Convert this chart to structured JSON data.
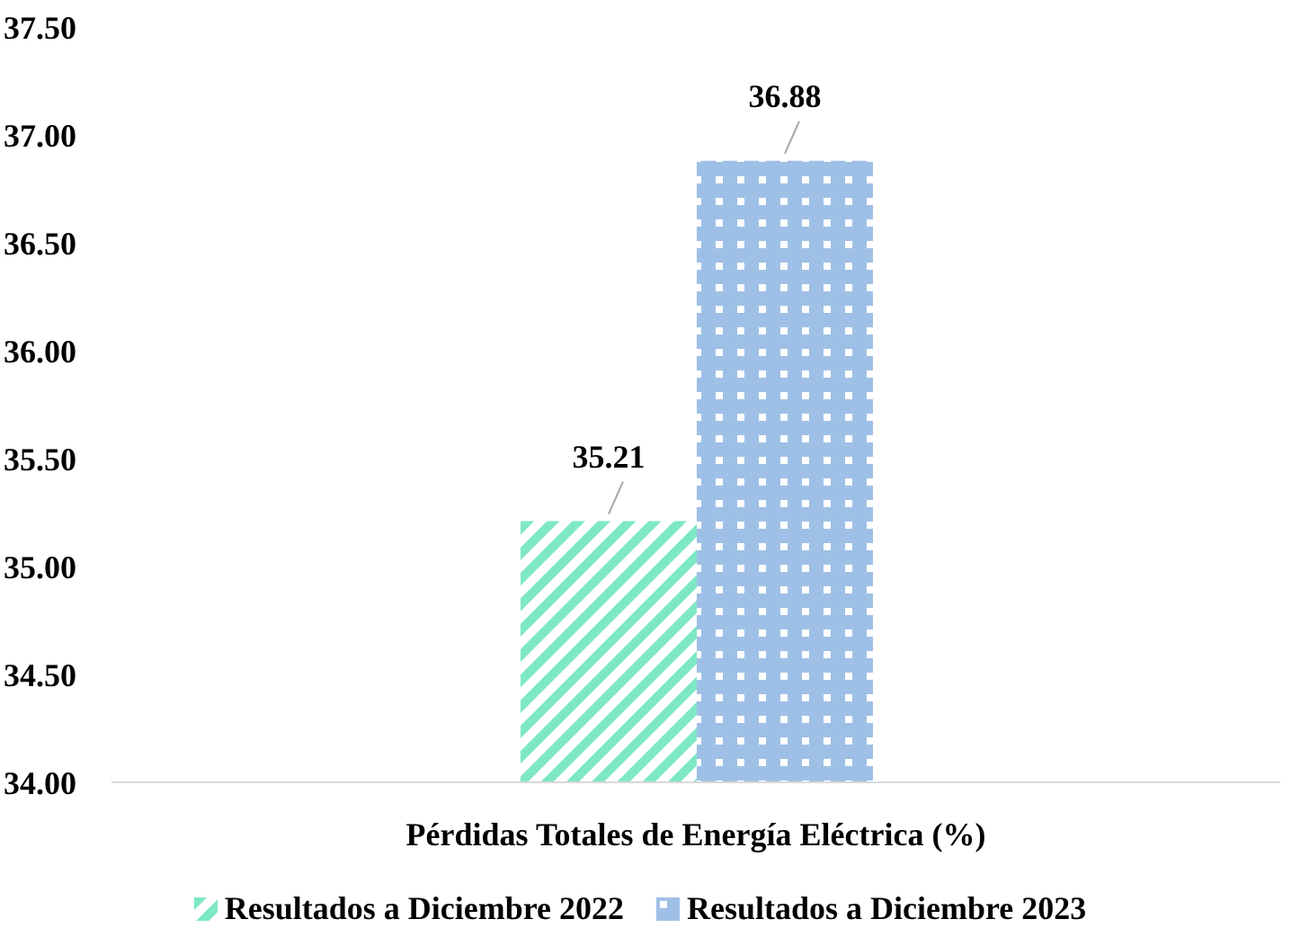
{
  "chart_data": {
    "type": "bar",
    "categories": [
      "Pérdidas Totales de Energía Eléctrica (%)"
    ],
    "series": [
      {
        "name": "Resultados a Diciembre 2022",
        "color": "#7ee8c4",
        "values": [
          35.21
        ]
      },
      {
        "name": "Resultados a Diciembre 2023",
        "color": "#9fc0e6",
        "values": [
          36.88
        ]
      }
    ],
    "ylim": [
      34,
      37.5
    ],
    "yticks": [
      {
        "value": 34,
        "label": "34.00"
      },
      {
        "value": 34.5,
        "label": "34.50"
      },
      {
        "value": 35,
        "label": "35.00"
      },
      {
        "value": 35.5,
        "label": "35.50"
      },
      {
        "value": 36,
        "label": "36.00"
      },
      {
        "value": 36.5,
        "label": "36.50"
      },
      {
        "value": 37,
        "label": "37.00"
      },
      {
        "value": 37.5,
        "label": "37.50"
      }
    ],
    "data_labels": true,
    "legend": "bottom"
  }
}
